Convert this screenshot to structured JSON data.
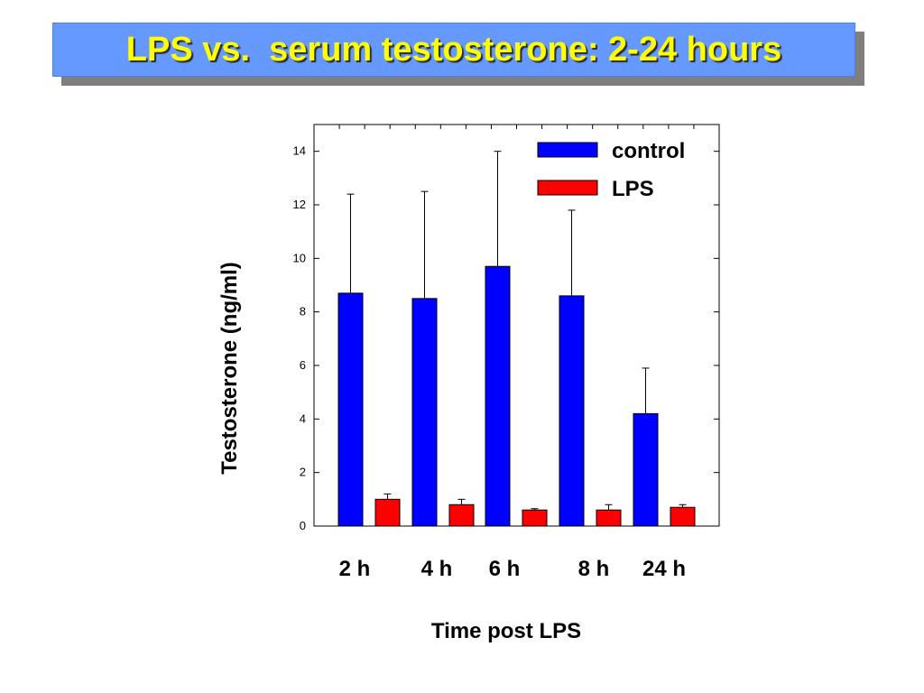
{
  "slide": {
    "title": "LPS vs.  serum testosterone: 2-24 hours",
    "title_bg": "#6699ff",
    "title_color": "#ffff00"
  },
  "chart_data": {
    "type": "bar",
    "categories": [
      "2 h",
      "4 h",
      "6 h",
      "8 h",
      "24 h"
    ],
    "series": [
      {
        "name": "control",
        "color": "#0000ff",
        "values": [
          8.7,
          8.5,
          9.7,
          8.6,
          4.2
        ],
        "error": [
          3.7,
          4.0,
          4.3,
          3.2,
          1.7
        ]
      },
      {
        "name": "LPS",
        "color": "#ff0000",
        "values": [
          1.0,
          0.8,
          0.6,
          0.6,
          0.7
        ],
        "error": [
          0.2,
          0.2,
          0.05,
          0.2,
          0.1
        ]
      }
    ],
    "xlabel": "Time post LPS",
    "ylabel": "Testosterone (ng/ml)",
    "ylim": [
      0,
      15
    ],
    "yticks": [
      0,
      2,
      4,
      6,
      8,
      10,
      12,
      14
    ],
    "legend_position": "top-right",
    "grid": false
  }
}
